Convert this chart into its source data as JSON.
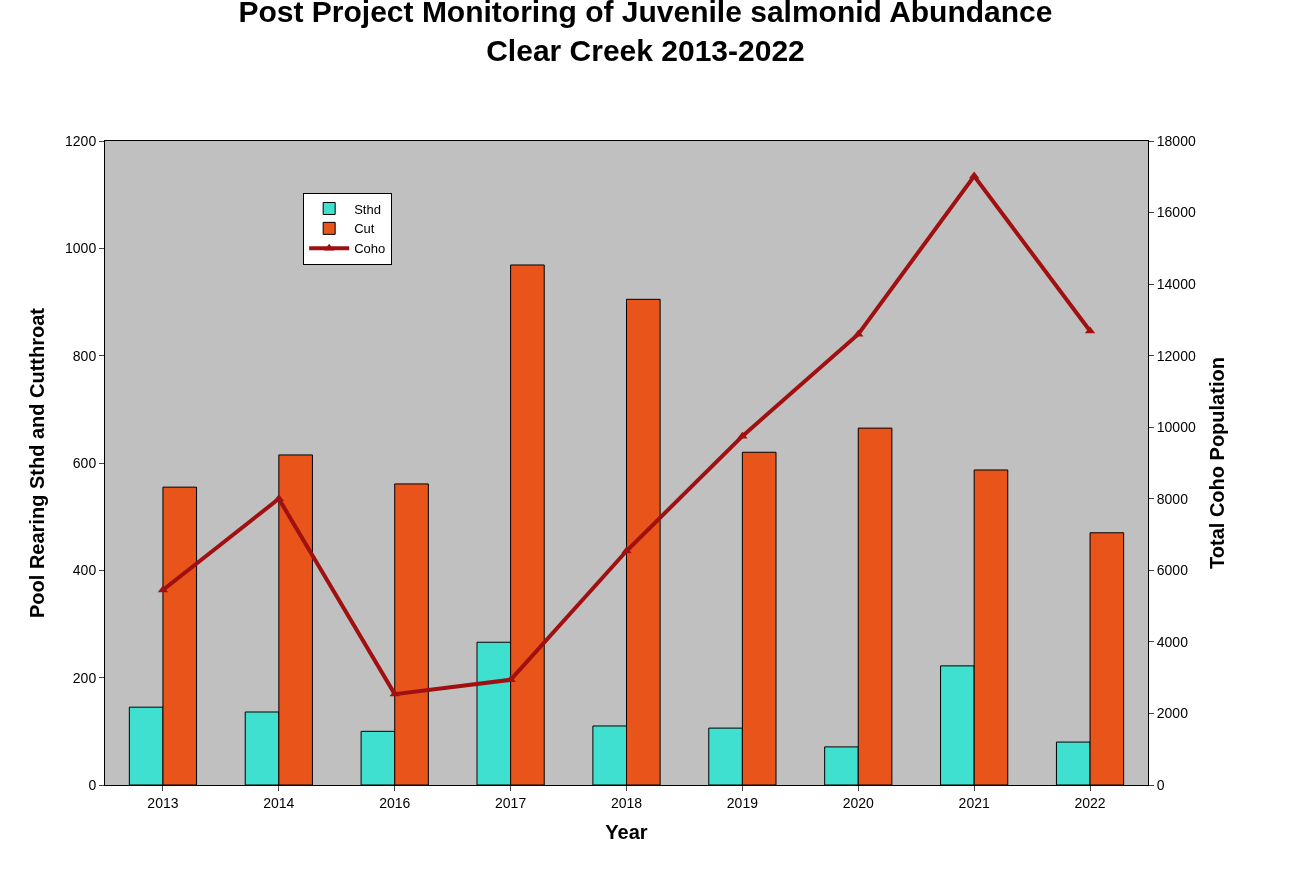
{
  "chart_data": {
    "type": "bar",
    "title": "Post Project Monitoring of Juvenile salmonid Abundance\nClear Creek 2013-2022",
    "xlabel": "Year",
    "ylabel": "Pool Rearing Sthd and Cutthroat",
    "y2label": "Total Coho Population",
    "categories": [
      "2013",
      "2014",
      "2016",
      "2017",
      "2018",
      "2019",
      "2020",
      "2021",
      "2022"
    ],
    "series": [
      {
        "name": "Sthd",
        "color": "#40e0d0",
        "values": [
          145,
          136,
          100,
          266,
          110,
          106,
          71,
          222,
          80
        ]
      },
      {
        "name": "Cut",
        "color": "#e8541a",
        "values": [
          555,
          615,
          561,
          969,
          905,
          620,
          665,
          587,
          470
        ]
      },
      {
        "name": "Coho",
        "type": "line",
        "axis": "y2",
        "color": "#a01010",
        "marker": "triangle",
        "values": [
          5450,
          8000,
          2540,
          2940,
          6540,
          9750,
          12600,
          17020,
          12690
        ]
      }
    ],
    "ylim": [
      0,
      1200
    ],
    "yticks": [
      0,
      200,
      400,
      600,
      800,
      1000,
      1200
    ],
    "y2lim": [
      0,
      18000
    ],
    "y2ticks": [
      0,
      2000,
      4000,
      6000,
      8000,
      10000,
      12000,
      14000,
      16000,
      18000
    ],
    "grid": false,
    "legend": "top left"
  }
}
